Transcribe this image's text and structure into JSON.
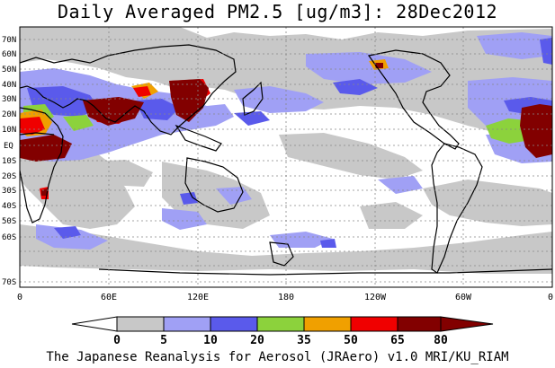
{
  "title": "Daily Averaged PM2.5 [ug/m3]: 28Dec2012",
  "footer": "The Japanese Reanalysis for Aerosol (JRAero) v1.0 MRI/KU_RIAM",
  "map": {
    "lat_labels": [
      "70N",
      "60N",
      "50N",
      "40N",
      "30N",
      "20N",
      "10N",
      "EQ",
      "10S",
      "20S",
      "30S",
      "40S",
      "50S",
      "60S",
      "70S"
    ],
    "lon_labels": [
      "0",
      "60E",
      "120E",
      "180",
      "120W",
      "60W",
      "0"
    ]
  },
  "colorbar": {
    "levels": [
      "0",
      "5",
      "10",
      "20",
      "35",
      "50",
      "65",
      "80"
    ],
    "colors": [
      "#ffffff",
      "#c8c8c8",
      "#a0a0f5",
      "#5a5aeb",
      "#8cd23c",
      "#f0a000",
      "#f00000",
      "#820000"
    ]
  }
}
